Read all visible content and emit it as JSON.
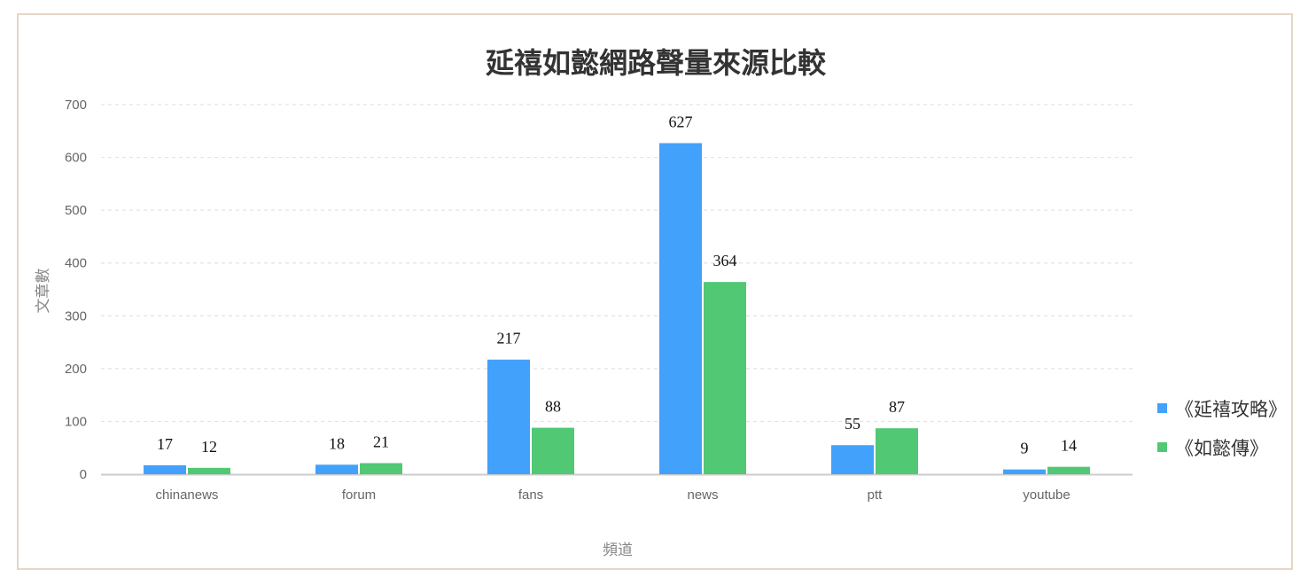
{
  "chart_data": {
    "type": "bar",
    "title": "延禧如懿網路聲量來源比較",
    "xlabel": "頻道",
    "ylabel": "文章數",
    "categories": [
      "chinanews",
      "forum",
      "fans",
      "news",
      "ptt",
      "youtube"
    ],
    "series": [
      {
        "name": "《延禧攻略》",
        "color": "#42a1fb",
        "values": [
          17,
          18,
          217,
          627,
          55,
          9
        ]
      },
      {
        "name": "《如懿傳》",
        "color": "#51c874",
        "values": [
          12,
          21,
          88,
          364,
          87,
          14
        ]
      }
    ],
    "ylim": [
      0,
      700
    ],
    "yticks": [
      0,
      100,
      200,
      300,
      400,
      500,
      600,
      700
    ],
    "grid": true,
    "legend": "right"
  }
}
